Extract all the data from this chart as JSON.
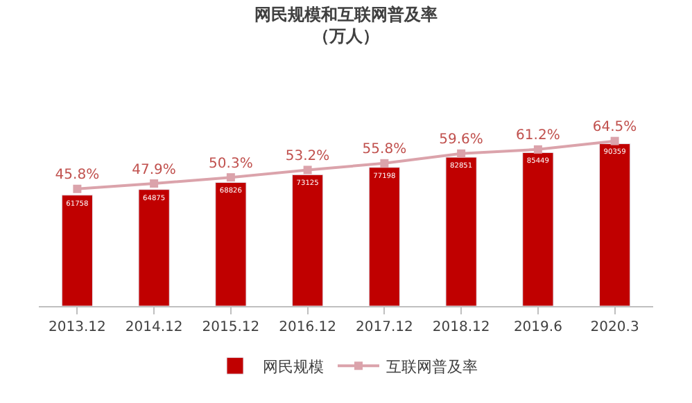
{
  "chart_data": {
    "type": "bar",
    "title": "网民规模和互联网普及率",
    "subtitle": "（万人）",
    "categories": [
      "2013.12",
      "2014.12",
      "2015.12",
      "2016.12",
      "2017.12",
      "2018.12",
      "2019.6",
      "2020.3"
    ],
    "series": [
      {
        "name": "网民规模",
        "color": "#c00000",
        "values": [
          61758,
          64875,
          68826,
          73125,
          77198,
          82851,
          85449,
          90359
        ],
        "value_labels": [
          "61758",
          "64875",
          "68826",
          "73125",
          "77198",
          "82851",
          "85449",
          "90359"
        ]
      },
      {
        "name": "互联网普及率",
        "type": "line",
        "axis": "y2",
        "color": "#dba3ab",
        "marker": "square",
        "values": [
          45.8,
          47.9,
          50.3,
          53.2,
          55.8,
          59.6,
          61.2,
          64.5
        ],
        "value_labels": [
          "45.8%",
          "47.9%",
          "50.3%",
          "53.2%",
          "55.8%",
          "59.6%",
          "61.2%",
          "64.5%"
        ]
      }
    ],
    "legend": "bottom"
  }
}
